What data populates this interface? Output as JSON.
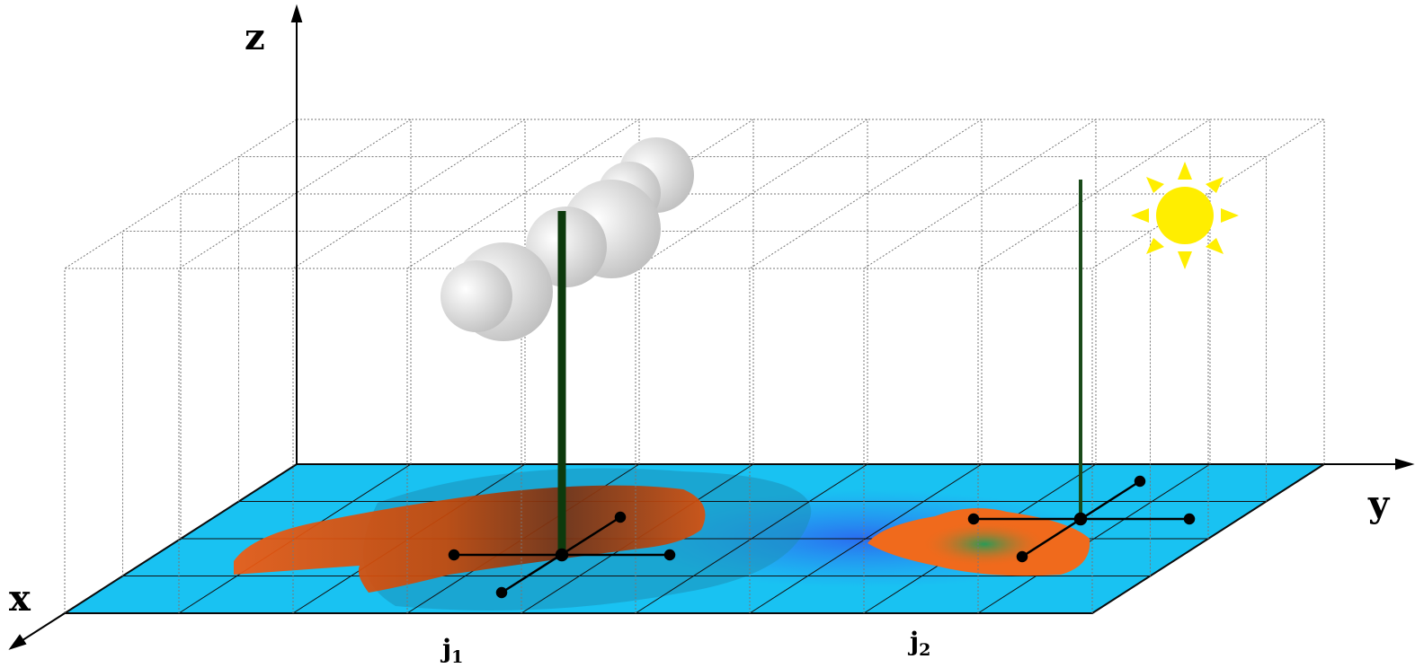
{
  "axes": {
    "z": "z",
    "y": "y",
    "x": "x"
  },
  "stations": [
    {
      "name": "j",
      "sub": "1"
    },
    {
      "name": "j",
      "sub": "2"
    }
  ]
}
